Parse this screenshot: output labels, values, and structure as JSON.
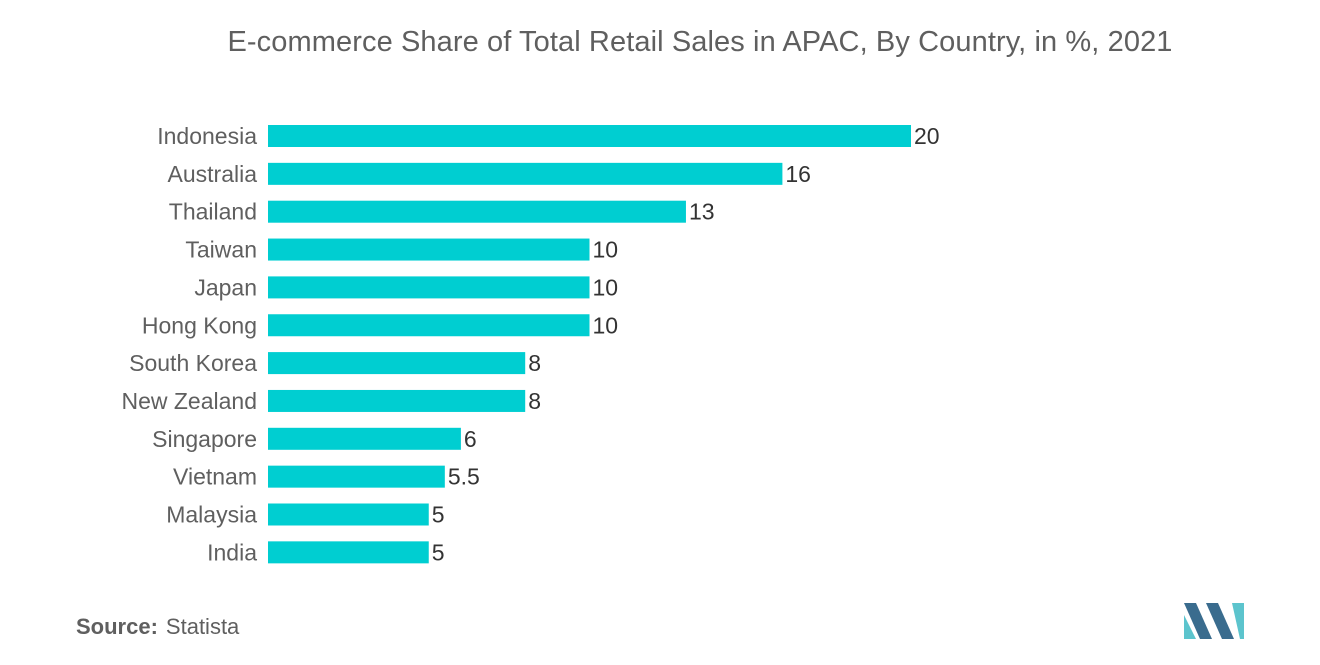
{
  "chart_data": {
    "type": "bar",
    "orientation": "horizontal",
    "title": "E-commerce Share of Total Retail Sales in APAC, By Country, in %, 2021",
    "categories": [
      "Indonesia",
      "Australia",
      "Thailand",
      "Taiwan",
      "Japan",
      "Hong Kong",
      "South Korea",
      "New Zealand",
      "Singapore",
      "Vietnam",
      "Malaysia",
      "India"
    ],
    "values": [
      20,
      16,
      13,
      10,
      10,
      10,
      8,
      8,
      6,
      5.5,
      5,
      5
    ],
    "value_labels": [
      "20",
      "16",
      "13",
      "10",
      "10",
      "10",
      "8",
      "8",
      "6",
      "5.5",
      "5",
      "5"
    ],
    "xlim": [
      0,
      20
    ],
    "grid": false,
    "legend": "none",
    "bar_color": "#00CED1"
  },
  "source": {
    "label": "Source:",
    "text": "Statista"
  },
  "colors": {
    "bar": "#00CED1",
    "text": "#5f5f5f",
    "value_text": "#333333",
    "logo_dark": "#3a6c8e",
    "logo_light": "#5cc4cd"
  }
}
